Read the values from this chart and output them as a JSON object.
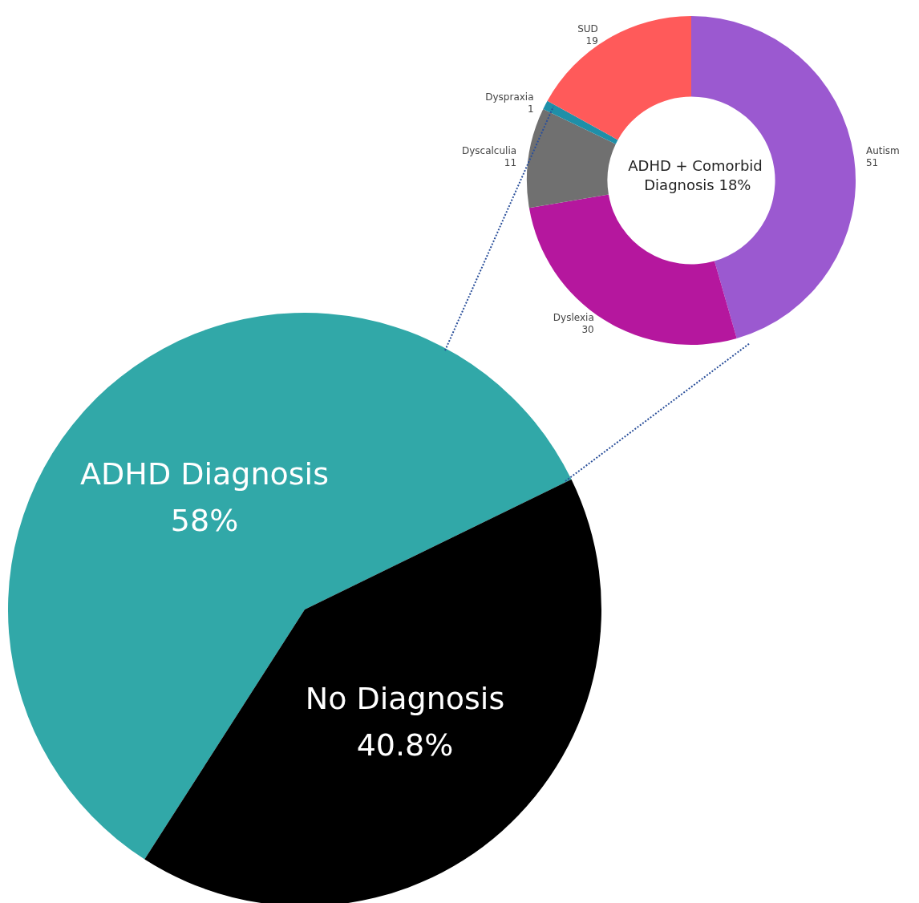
{
  "chart_data": [
    {
      "type": "pie",
      "categories": [
        "ADHD Diagnosis",
        "No Diagnosis"
      ],
      "values": [
        58,
        40.8
      ],
      "value_labels": [
        "58%",
        "40.8%"
      ],
      "colors": [
        "#31a8a8",
        "#000000"
      ]
    },
    {
      "type": "donut",
      "title": "ADHD + Comorbid Diagnosis 18%",
      "categories": [
        "Autism",
        "Dyslexia",
        "Dyscalculia",
        "Dyspraxia",
        "SUD"
      ],
      "values": [
        51,
        30,
        11,
        1,
        19
      ],
      "colors": [
        "#9b59d0",
        "#b5179e",
        "#707070",
        "#1f8fa8",
        "#ff5a5a"
      ],
      "data_labels": true
    }
  ]
}
